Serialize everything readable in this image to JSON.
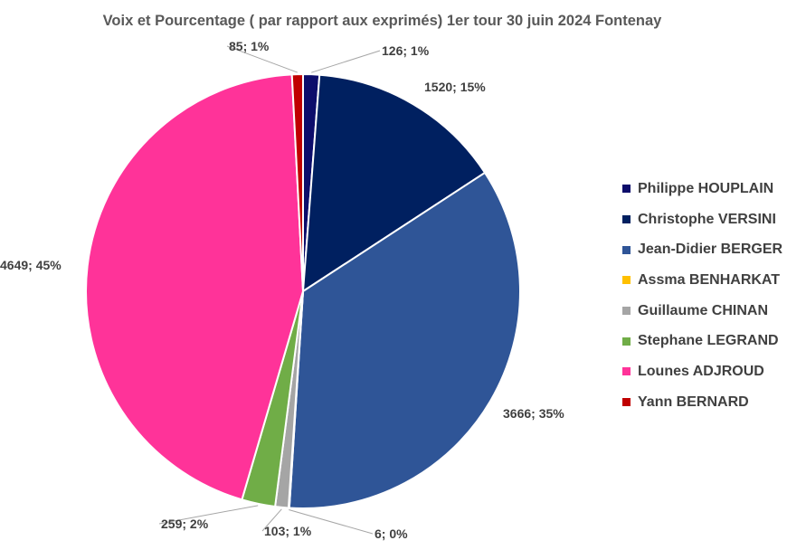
{
  "chart_data": {
    "type": "pie",
    "title": "Voix et Pourcentage  ( par rapport aux exprimés) 1er tour 30 juin 2024 Fontenay",
    "legend_position": "right",
    "slices": [
      {
        "name": "Philippe HOUPLAIN",
        "value": 126,
        "label": "126; 1%",
        "color": "#0d0d6b"
      },
      {
        "name": "Christophe VERSINI",
        "value": 1520,
        "label": "1520; 15%",
        "color": "#002060"
      },
      {
        "name": "Jean-Didier BERGER",
        "value": 3666,
        "label": "3666; 35%",
        "color": "#2f5597"
      },
      {
        "name": "Assma BENHARKAT",
        "value": 6,
        "label": "6; 0%",
        "color": "#ffc000"
      },
      {
        "name": "Guillaume CHINAN",
        "value": 103,
        "label": "103; 1%",
        "color": "#a5a5a5"
      },
      {
        "name": "Stephane LEGRAND",
        "value": 259,
        "label": "259; 2%",
        "color": "#70ad47"
      },
      {
        "name": "Lounes ADJROUD",
        "value": 4649,
        "label": "4649; 45%",
        "color": "#ff3399"
      },
      {
        "name": "Yann BERNARD",
        "value": 85,
        "label": "85; 1%",
        "color": "#c00000"
      }
    ]
  }
}
